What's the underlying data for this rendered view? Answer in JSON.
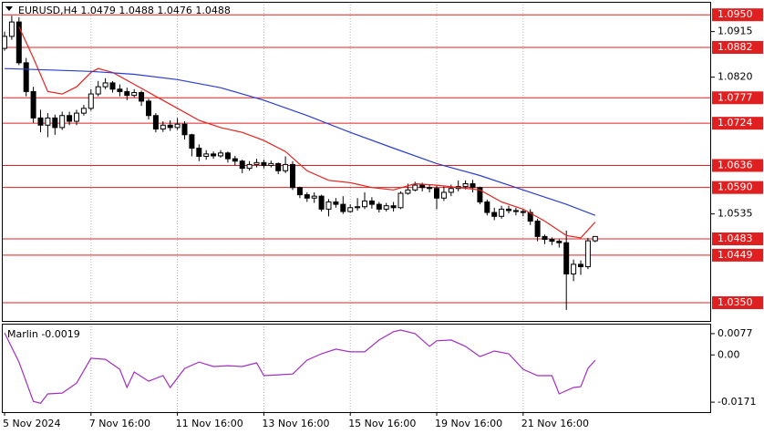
{
  "chart_data": [
    {
      "type": "candlestick",
      "title": "EURUSD,H4  1.0479 1.0488 1.0476 1.0488",
      "categories": [
        "5 Nov 2024",
        null,
        null,
        null,
        null,
        null,
        null,
        null,
        null,
        null,
        null,
        null,
        "7 Nov 16:00",
        null,
        null,
        null,
        null,
        null,
        null,
        null,
        null,
        null,
        null,
        null,
        "11 Nov 16:00",
        null,
        null,
        null,
        null,
        null,
        null,
        null,
        null,
        null,
        null,
        null,
        "13 Nov 16:00",
        null,
        null,
        null,
        null,
        null,
        null,
        null,
        null,
        null,
        null,
        null,
        "15 Nov 16:00",
        null,
        null,
        null,
        null,
        null,
        null,
        null,
        null,
        null,
        null,
        null,
        "19 Nov 16:00",
        null,
        null,
        null,
        null,
        null,
        null,
        null,
        null,
        null,
        null,
        null,
        "21 Nov 16:00",
        null,
        null,
        null,
        null,
        null,
        null,
        null,
        null,
        null,
        null
      ],
      "open": [
        1.088,
        1.0905,
        1.0935,
        1.085,
        1.079,
        1.0735,
        1.072,
        1.0735,
        1.0715,
        1.074,
        1.0728,
        1.0745,
        1.0755,
        1.0785,
        1.08,
        1.0808,
        1.0795,
        1.079,
        1.0782,
        1.0788,
        1.077,
        1.074,
        1.0712,
        1.072,
        1.0715,
        1.0722,
        1.07,
        1.0672,
        1.0655,
        1.066,
        1.0656,
        1.0662,
        1.065,
        1.0645,
        1.063,
        1.0638,
        1.0642,
        1.0636,
        1.064,
        1.0625,
        1.0638,
        1.059,
        1.0575,
        1.0568,
        1.0572,
        1.0545,
        1.056,
        1.0555,
        1.054,
        1.0548,
        1.055,
        1.0562,
        1.0555,
        1.0545,
        1.0552,
        1.0548,
        1.0578,
        1.0585,
        1.0595,
        1.059,
        1.0588,
        1.0568,
        1.058,
        1.0588,
        1.0592,
        1.0598,
        1.059,
        1.056,
        1.0538,
        1.053,
        1.0545,
        1.0542,
        1.054,
        1.0538,
        1.052,
        1.0488,
        1.0482,
        1.0478,
        1.0475,
        1.041,
        1.043,
        1.0425,
        1.0479
      ],
      "high": [
        1.0915,
        1.0948,
        1.0945,
        1.086,
        1.08,
        1.0752,
        1.0745,
        1.0742,
        1.0748,
        1.0748,
        1.0752,
        1.0762,
        1.0795,
        1.0812,
        1.0818,
        1.0812,
        1.0805,
        1.0798,
        1.0795,
        1.0792,
        1.0775,
        1.0745,
        1.0728,
        1.073,
        1.0735,
        1.0728,
        1.0702,
        1.068,
        1.0668,
        1.0665,
        1.0668,
        1.0665,
        1.0656,
        1.0648,
        1.0645,
        1.065,
        1.0648,
        1.0646,
        1.0642,
        1.0655,
        1.0645,
        1.0592,
        1.058,
        1.058,
        1.0575,
        1.0566,
        1.0568,
        1.0572,
        1.0555,
        1.0568,
        1.058,
        1.057,
        1.056,
        1.0558,
        1.056,
        1.0582,
        1.0598,
        1.0602,
        1.06,
        1.0597,
        1.0595,
        1.0592,
        1.0596,
        1.0605,
        1.0605,
        1.0606,
        1.0592,
        1.0565,
        1.0548,
        1.0552,
        1.0552,
        1.0548,
        1.0546,
        1.0545,
        1.0525,
        1.0492,
        1.0486,
        1.0482,
        1.05,
        1.044,
        1.0438,
        1.0485,
        1.0488
      ],
      "low": [
        1.0875,
        1.0898,
        1.0845,
        1.078,
        1.0725,
        1.0705,
        1.0695,
        1.07,
        1.071,
        1.072,
        1.072,
        1.074,
        1.075,
        1.078,
        1.0795,
        1.0788,
        1.078,
        1.0772,
        1.0778,
        1.076,
        1.0732,
        1.0705,
        1.0706,
        1.0708,
        1.071,
        1.069,
        1.0655,
        1.0645,
        1.0648,
        1.065,
        1.0652,
        1.0642,
        1.0636,
        1.062,
        1.0625,
        1.0632,
        1.063,
        1.0632,
        1.0618,
        1.062,
        1.0585,
        1.0568,
        1.056,
        1.0558,
        1.054,
        1.053,
        1.0548,
        1.0535,
        1.0538,
        1.0542,
        1.0545,
        1.0546,
        1.0538,
        1.054,
        1.054,
        1.0545,
        1.0575,
        1.0582,
        1.0582,
        1.058,
        1.0545,
        1.0562,
        1.0572,
        1.0582,
        1.0586,
        1.058,
        1.0555,
        1.0532,
        1.0522,
        1.0525,
        1.0536,
        1.0532,
        1.053,
        1.0512,
        1.0478,
        1.0472,
        1.047,
        1.0465,
        1.0335,
        1.0395,
        1.0408,
        1.042,
        1.0476
      ],
      "close": [
        1.0905,
        1.0935,
        1.085,
        1.079,
        1.0735,
        1.072,
        1.0735,
        1.0715,
        1.074,
        1.0728,
        1.0745,
        1.0755,
        1.0785,
        1.08,
        1.0808,
        1.0795,
        1.079,
        1.0782,
        1.0788,
        1.077,
        1.074,
        1.0712,
        1.072,
        1.0715,
        1.0722,
        1.07,
        1.0672,
        1.0655,
        1.066,
        1.0656,
        1.0662,
        1.065,
        1.0645,
        1.063,
        1.0638,
        1.0642,
        1.0636,
        1.064,
        1.0625,
        1.0638,
        1.059,
        1.0575,
        1.0568,
        1.0572,
        1.0545,
        1.056,
        1.0555,
        1.054,
        1.0548,
        1.055,
        1.0562,
        1.0555,
        1.0545,
        1.0552,
        1.0548,
        1.0578,
        1.0585,
        1.0595,
        1.059,
        1.0588,
        1.0568,
        1.058,
        1.0588,
        1.0592,
        1.0598,
        1.059,
        1.056,
        1.0538,
        1.053,
        1.0545,
        1.0542,
        1.054,
        1.0538,
        1.052,
        1.0488,
        1.0482,
        1.0478,
        1.0475,
        1.041,
        1.043,
        1.0425,
        1.0479,
        1.0488
      ],
      "up_color": "#ffffff",
      "down_color": "#000000",
      "series": [
        {
          "color": "#e8231f",
          "x": [
            2,
            4,
            6,
            8,
            10,
            12,
            13,
            15,
            18,
            21,
            24,
            27,
            30,
            33,
            36,
            39,
            42,
            45,
            48,
            51,
            54,
            57,
            60,
            63,
            66,
            69,
            72,
            75,
            78,
            80,
            82
          ],
          "values": [
            1.0925,
            1.086,
            1.079,
            1.0785,
            1.08,
            1.083,
            1.0838,
            1.083,
            1.0805,
            1.078,
            1.0755,
            1.073,
            1.0715,
            1.0705,
            1.0688,
            1.0665,
            1.0625,
            1.0605,
            1.06,
            1.059,
            1.0585,
            1.0598,
            1.0595,
            1.059,
            1.0585,
            1.056,
            1.0545,
            1.052,
            1.049,
            1.0485,
            1.0518
          ]
        },
        {
          "color": "#2b3dcf",
          "x": [
            0,
            6,
            12,
            18,
            24,
            30,
            36,
            42,
            48,
            54,
            60,
            66,
            72,
            78,
            82
          ],
          "values": [
            1.0838,
            1.0835,
            1.0832,
            1.0826,
            1.0815,
            1.0798,
            1.0772,
            1.074,
            1.0705,
            1.0672,
            1.064,
            1.0615,
            1.0585,
            1.0555,
            1.0532
          ]
        }
      ],
      "ylim": [
        1.0312,
        1.0977
      ],
      "yticks": [
        1.0915,
        {
          "value": 1.082,
          "label": "1.0820"
        },
        1.0535
      ],
      "levels": [
        {
          "value": 1.095,
          "label": "1.0950"
        },
        {
          "value": 1.0882,
          "label": "1.0882"
        },
        {
          "value": 1.0777,
          "label": "1.0777"
        },
        {
          "value": 1.0724,
          "label": "1.0724"
        },
        {
          "value": 1.0636,
          "label": "1.0636"
        },
        {
          "value": 1.059,
          "label": "1.0590"
        },
        {
          "value": 1.0483,
          "label": "1.0483"
        },
        {
          "value": 1.0449,
          "label": "1.0449"
        },
        {
          "value": 1.035,
          "label": "1.0350"
        }
      ],
      "level_color": "#e02020",
      "grid": true
    },
    {
      "type": "line",
      "title": "Marlin -0.0019",
      "series": [
        {
          "color": "#a030c0",
          "x": [
            0,
            2,
            4,
            5,
            6,
            8,
            10,
            12,
            14,
            16,
            17,
            18,
            20,
            22,
            23,
            25,
            27,
            29,
            31,
            33,
            35,
            36,
            38,
            40,
            42,
            44,
            46,
            48,
            50,
            52,
            54,
            55,
            57,
            59,
            60,
            62,
            64,
            66,
            68,
            70,
            72,
            74,
            76,
            77,
            79,
            80,
            81,
            82
          ],
          "values": [
            0.008,
            -0.0026,
            -0.0168,
            -0.0175,
            -0.0141,
            -0.0138,
            -0.0102,
            -0.0012,
            -0.0016,
            -0.0052,
            -0.0118,
            -0.0062,
            -0.0095,
            -0.0075,
            -0.0118,
            -0.0049,
            -0.0026,
            -0.0042,
            -0.0039,
            -0.0042,
            -0.0029,
            -0.0075,
            -0.0072,
            -0.0069,
            -0.0019,
            0.0004,
            0.0021,
            0.0011,
            0.0011,
            0.0054,
            0.0084,
            0.009,
            0.0077,
            0.0031,
            0.0051,
            0.0054,
            0.0031,
            -0.0006,
            0.0014,
            0.0004,
            -0.0052,
            -0.0075,
            -0.0075,
            -0.0141,
            -0.0118,
            -0.0115,
            -0.0049,
            -0.0019
          ]
        }
      ],
      "ylim": [
        -0.0207,
        0.0113
      ],
      "yticks": [
        0.0077,
        {
          "value": 0,
          "label": "0.00"
        },
        -0.0171
      ],
      "grid": true
    }
  ]
}
